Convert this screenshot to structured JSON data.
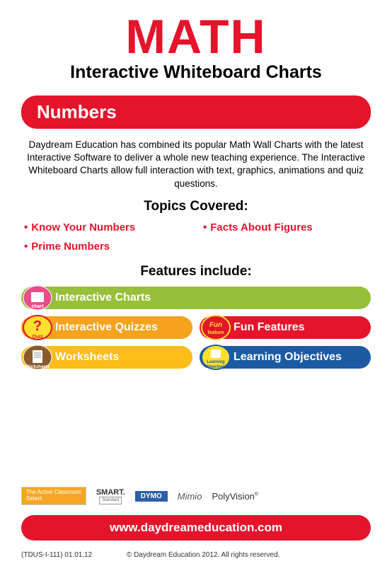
{
  "colors": {
    "red": "#e4142b",
    "green": "#96c03a",
    "orange": "#f5a21d",
    "yellow": "#fcbc1a",
    "blue": "#1c5ba2",
    "text": "#000000"
  },
  "header": {
    "title": "MATH",
    "subtitle": "Interactive Whiteboard Charts"
  },
  "section": {
    "label": "Numbers"
  },
  "description": "Daydream Education has combined its popular Math Wall Charts with the latest Interactive Software to deliver a whole new teaching experience. The Interactive Whiteboard Charts allow full interaction with text, graphics, animations and quiz questions.",
  "topics": {
    "heading": "Topics Covered:",
    "items": [
      "Know Your Numbers",
      "Facts About Figures",
      "Prime Numbers"
    ]
  },
  "features": {
    "heading": "Features include:",
    "items": [
      {
        "label": "Interactive Charts",
        "color": "#96c03a",
        "badge": "chart",
        "width": "full"
      },
      {
        "label": "Interactive Quizzes",
        "color": "#f5a21d",
        "badge": "quiz",
        "width": "half"
      },
      {
        "label": "Fun Features",
        "color": "#e4142b",
        "badge": "fun",
        "width": "half"
      },
      {
        "label": "Worksheets",
        "color": "#fcbc1a",
        "badge": "worksheet",
        "width": "half"
      },
      {
        "label": "Learning Objectives",
        "color": "#1c5ba2",
        "badge": "learning",
        "width": "half"
      }
    ]
  },
  "partners": [
    "Select",
    "SMART",
    "DYMO",
    "Mimio",
    "PolyVision"
  ],
  "footer": {
    "url": "www.daydreameducation.com",
    "code": "(TDUS-I-111) 01.01.12",
    "copyright": "© Daydream Education 2012. All rights reserved."
  }
}
